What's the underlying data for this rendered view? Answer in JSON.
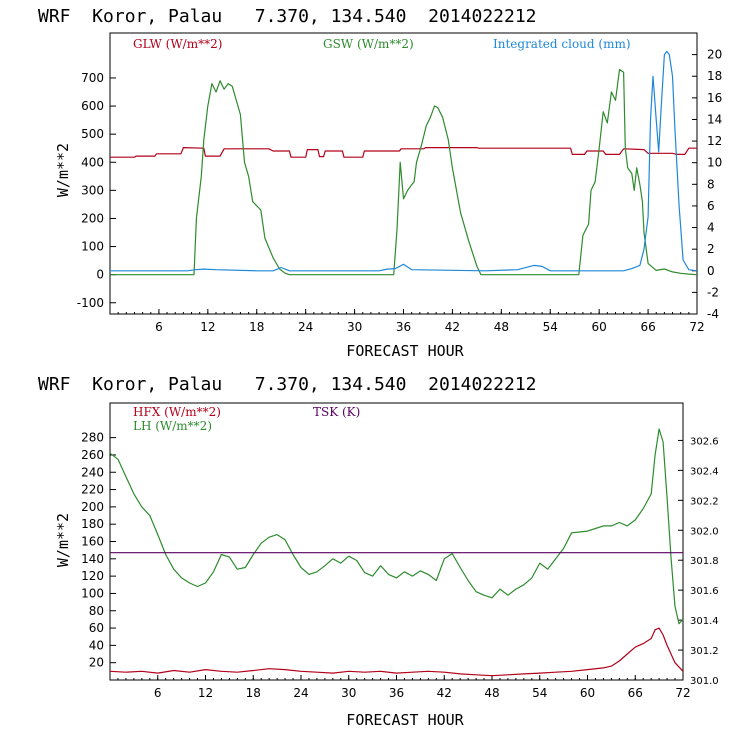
{
  "colors": {
    "glw": "#b2001a",
    "gsw": "#2e8b2e",
    "cloud": "#1e88d8",
    "hfx": "#b2001a",
    "lh": "#2e8b2e",
    "tsk": "#5a0060",
    "axis": "#000000"
  },
  "chart_data": [
    {
      "type": "line",
      "title": "WRF  Koror, Palau   7.370, 134.540  2014022212",
      "xlabel": "FORECAST HOUR",
      "ylabel": "W/m**2",
      "xlim": [
        0,
        72
      ],
      "ylim": [
        -140,
        860
      ],
      "ylim_right": [
        -4,
        22
      ],
      "x_ticks": [
        6,
        12,
        18,
        24,
        30,
        36,
        42,
        48,
        54,
        60,
        66,
        72
      ],
      "y_ticks": [
        -100,
        0,
        100,
        200,
        300,
        400,
        500,
        600,
        700
      ],
      "y_ticks_right": [
        -4,
        -2,
        0,
        2,
        4,
        6,
        8,
        10,
        12,
        14,
        16,
        18,
        20
      ],
      "grid": false,
      "legend": "top",
      "series": [
        {
          "name": "GLW (W/m**2)",
          "axis": "left",
          "color_key": "glw",
          "x": [
            0,
            3,
            3.2,
            5.5,
            5.7,
            8.7,
            9,
            11.5,
            11.7,
            13.5,
            14,
            19.5,
            20,
            22,
            22.2,
            24,
            24.2,
            25.5,
            25.7,
            26.2,
            26.4,
            28.5,
            28.7,
            31,
            31.2,
            35.5,
            35.7,
            38.5,
            38.7,
            45,
            45.2,
            56.5,
            56.7,
            58.2,
            58.5,
            60.5,
            60.8,
            62.5,
            63,
            65.5,
            66,
            69,
            69.5,
            70.5,
            71,
            72
          ],
          "y": [
            418,
            418,
            422,
            422,
            430,
            430,
            452,
            450,
            422,
            422,
            448,
            448,
            440,
            440,
            418,
            418,
            445,
            445,
            420,
            420,
            440,
            440,
            418,
            418,
            440,
            440,
            448,
            448,
            452,
            452,
            450,
            450,
            428,
            428,
            440,
            440,
            428,
            428,
            448,
            445,
            432,
            432,
            428,
            428,
            450,
            450
          ]
        },
        {
          "name": "GSW (W/m**2)",
          "axis": "left",
          "color_key": "gsw",
          "x": [
            0,
            10.3,
            10.6,
            11.2,
            11.5,
            12,
            12.5,
            13,
            13.5,
            14,
            14.5,
            15,
            16,
            16.5,
            17,
            17.5,
            18.5,
            19,
            20,
            20.8,
            21.5,
            22,
            34.8,
            35.2,
            35.6,
            36,
            36.5,
            37,
            37.3,
            37.6,
            38.2,
            38.8,
            39.3,
            39.8,
            40.2,
            40.8,
            41.5,
            42,
            42.5,
            43,
            44,
            45,
            45.5,
            57.5,
            58,
            58.7,
            59,
            59.5,
            60,
            60.5,
            61,
            61.5,
            62,
            62.5,
            63,
            63.2,
            63.5,
            64,
            64.3,
            64.6,
            65,
            65.3,
            65.5,
            66,
            67,
            68,
            69,
            70,
            71,
            72
          ],
          "y": [
            0,
            0,
            200,
            350,
            480,
            600,
            680,
            650,
            690,
            660,
            680,
            670,
            570,
            400,
            350,
            260,
            230,
            130,
            60,
            20,
            5,
            0,
            0,
            160,
            400,
            270,
            300,
            320,
            330,
            400,
            460,
            530,
            560,
            600,
            595,
            560,
            480,
            380,
            300,
            220,
            120,
            30,
            0,
            0,
            140,
            180,
            300,
            330,
            450,
            580,
            540,
            650,
            620,
            730,
            720,
            450,
            380,
            360,
            300,
            380,
            320,
            260,
            150,
            40,
            15,
            20,
            10,
            5,
            2,
            0
          ]
        },
        {
          "name": "Integrated cloud (mm)",
          "axis": "right",
          "color_key": "cloud",
          "x": [
            0,
            9.5,
            10.5,
            11.5,
            13,
            18,
            20,
            21,
            22,
            33,
            34,
            35,
            36,
            37,
            46,
            50,
            52,
            53,
            54,
            63,
            64,
            65,
            65.5,
            66,
            66.3,
            66.6,
            67,
            67.3,
            67.6,
            68,
            68.3,
            68.6,
            69,
            69.3,
            69.8,
            70.3,
            71,
            72
          ],
          "y": [
            0,
            0,
            0.1,
            0.15,
            0.1,
            0,
            0,
            0.3,
            0,
            0,
            0.15,
            0.2,
            0.6,
            0.1,
            0,
            0.1,
            0.5,
            0.4,
            0,
            0,
            0.2,
            0.5,
            2,
            5,
            14,
            18,
            14,
            11,
            15,
            20,
            20.3,
            20,
            18,
            13,
            6,
            1,
            0.1,
            0
          ]
        }
      ]
    },
    {
      "type": "line",
      "title": "WRF  Koror, Palau   7.370, 134.540  2014022212",
      "xlabel": "FORECAST HOUR",
      "ylabel": "W/m**2",
      "xlim": [
        0,
        72
      ],
      "ylim": [
        0,
        320
      ],
      "ylim_right": [
        301.0,
        302.85
      ],
      "x_ticks": [
        6,
        12,
        18,
        24,
        30,
        36,
        42,
        48,
        54,
        60,
        66,
        72
      ],
      "y_ticks": [
        20,
        40,
        60,
        80,
        100,
        120,
        140,
        160,
        180,
        200,
        220,
        240,
        260,
        280
      ],
      "y_ticks_right": [
        301.0,
        301.2,
        301.4,
        301.6,
        301.8,
        302.0,
        302.2,
        302.4,
        302.6
      ],
      "grid": false,
      "legend": "top",
      "series": [
        {
          "name": "HFX (W/m**2)",
          "axis": "left",
          "color_key": "hfx",
          "x": [
            0,
            2,
            4,
            6,
            8,
            10,
            12,
            14,
            16,
            18,
            20,
            22,
            24,
            26,
            28,
            30,
            32,
            34,
            36,
            38,
            40,
            42,
            44,
            46,
            48,
            50,
            52,
            54,
            56,
            58,
            60,
            62,
            63,
            64,
            65,
            66,
            67,
            68,
            68.5,
            69,
            69.5,
            70,
            71,
            72
          ],
          "y": [
            10,
            9,
            10,
            8,
            11,
            9,
            12,
            10,
            9,
            11,
            13,
            12,
            10,
            9,
            8,
            10,
            9,
            10,
            8,
            9,
            10,
            9,
            7,
            6,
            5,
            6,
            7,
            8,
            9,
            10,
            12,
            14,
            16,
            22,
            30,
            38,
            42,
            48,
            58,
            60,
            52,
            40,
            20,
            10
          ]
        },
        {
          "name": "LH  (W/m**2)",
          "axis": "left",
          "color_key": "lh",
          "x": [
            0,
            1,
            2,
            3,
            4,
            5,
            6,
            7,
            8,
            9,
            10,
            11,
            12,
            13,
            14,
            15,
            16,
            17,
            18,
            19,
            20,
            21,
            22,
            23,
            24,
            25,
            26,
            27,
            28,
            29,
            30,
            31,
            32,
            33,
            34,
            35,
            36,
            37,
            38,
            39,
            40,
            41,
            42,
            43,
            44,
            45,
            46,
            47,
            48,
            49,
            50,
            51,
            52,
            53,
            54,
            55,
            56,
            57,
            58,
            59,
            60,
            61,
            62,
            63,
            64,
            65,
            66,
            67,
            68,
            68.5,
            69,
            69.5,
            70,
            70.5,
            71,
            71.5,
            72
          ],
          "y": [
            262,
            255,
            235,
            215,
            200,
            190,
            168,
            145,
            128,
            118,
            112,
            108,
            112,
            125,
            145,
            142,
            128,
            130,
            145,
            158,
            165,
            168,
            162,
            145,
            130,
            122,
            125,
            132,
            140,
            135,
            143,
            138,
            124,
            120,
            132,
            122,
            118,
            125,
            120,
            126,
            122,
            115,
            140,
            146,
            130,
            115,
            102,
            98,
            95,
            105,
            98,
            105,
            110,
            118,
            135,
            128,
            140,
            152,
            170,
            171,
            172,
            175,
            178,
            178,
            182,
            178,
            185,
            198,
            215,
            260,
            290,
            275,
            210,
            140,
            85,
            65,
            70
          ]
        },
        {
          "name": "TSK (K)",
          "axis": "right",
          "color_key": "tsk",
          "x": [
            0,
            72
          ],
          "y": [
            301.85,
            301.85
          ]
        }
      ]
    }
  ]
}
